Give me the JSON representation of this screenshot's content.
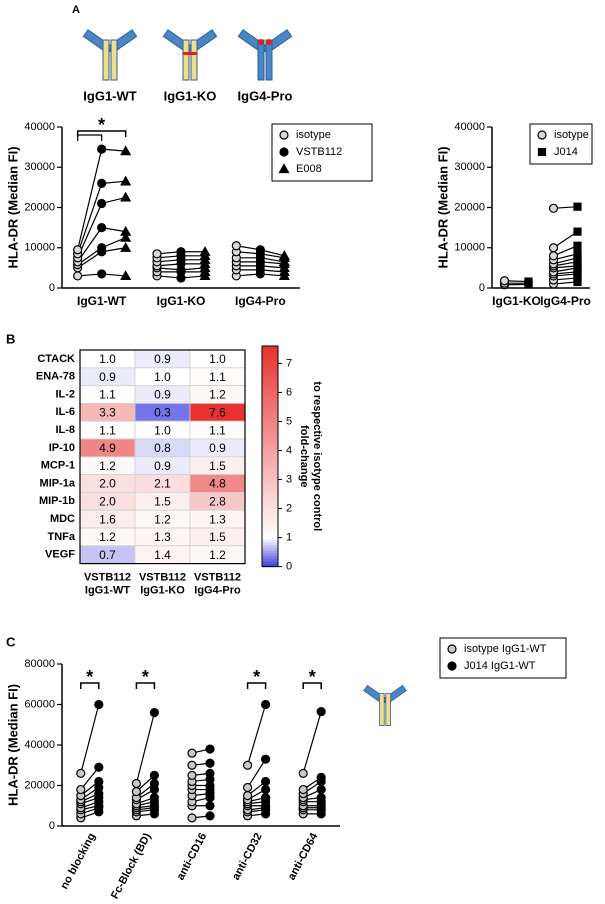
{
  "chart_data": [
    {
      "type": "paired",
      "panel_label": "A",
      "header_labels": [
        "IgG1-WT",
        "IgG1-KO",
        "IgG4-Pro"
      ],
      "ylabel": "HLA-DR (Median FI)",
      "categories": [
        "IgG1-WT",
        "IgG1-KO",
        "IgG4-Pro"
      ],
      "series": [
        {
          "name": "isotype",
          "color": "#d9d9d9",
          "edgecolor": "#000000",
          "marker": "circle",
          "values": [
            [
              3000,
              5000,
              5800,
              6500,
              7500,
              8500,
              9500
            ],
            [
              3000,
              4000,
              5000,
              5500,
              6500,
              7500,
              8500
            ],
            [
              3000,
              4500,
              5500,
              6500,
              7500,
              9000,
              10500
            ]
          ]
        },
        {
          "name": "VSTB112",
          "color": "#000000",
          "edgecolor": "#000000",
          "marker": "circle",
          "values": [
            [
              3500,
              9000,
              10000,
              15000,
              21000,
              26000,
              34500
            ],
            [
              2500,
              4000,
              4500,
              6000,
              7000,
              8000,
              9000
            ],
            [
              3500,
              4500,
              5500,
              6500,
              7500,
              8500,
              9500
            ]
          ]
        },
        {
          "name": "E008",
          "color": "#000000",
          "edgecolor": "#000000",
          "marker": "triangle",
          "values": [
            [
              3000,
              10000,
              12500,
              14000,
              22500,
              26500,
              34000
            ],
            [
              3000,
              4000,
              5000,
              6000,
              7000,
              8000,
              9000
            ],
            [
              3000,
              4000,
              5000,
              6000,
              6500,
              7500,
              8000
            ]
          ]
        }
      ],
      "ylim": [
        0,
        40000
      ],
      "yticks": [
        0,
        10000,
        20000,
        30000,
        40000
      ],
      "legend": "upper right",
      "significant": [
        true,
        false,
        false
      ],
      "significance_label": "*"
    },
    {
      "type": "paired",
      "ylabel": "HLA-DR (Median FI)",
      "categories": [
        "IgG1-KO",
        "IgG4-Pro"
      ],
      "series": [
        {
          "name": "isotype",
          "color": "#d9d9d9",
          "edgecolor": "#000000",
          "marker": "circle",
          "values": [
            [
              800,
              1200,
              1800
            ],
            [
              1000,
              2000,
              3000,
              3500,
              4000,
              5000,
              5500,
              6000,
              7000,
              8000,
              10000,
              19800
            ]
          ]
        },
        {
          "name": "J014",
          "color": "#000000",
          "edgecolor": "#000000",
          "marker": "square",
          "values": [
            [
              900,
              1200,
              1600
            ],
            [
              1500,
              2500,
              3500,
              4000,
              5000,
              5500,
              6500,
              7500,
              8500,
              10500,
              14000,
              20200
            ]
          ]
        }
      ],
      "ylim": [
        0,
        40000
      ],
      "yticks": [
        0,
        10000,
        20000,
        30000,
        40000
      ],
      "legend": "upper right"
    },
    {
      "type": "heatmap",
      "panel_label": "B",
      "rows": [
        "CTACK",
        "ENA-78",
        "IL-2",
        "IL-6",
        "IL-8",
        "IP-10",
        "MCP-1",
        "MIP-1a",
        "MIP-1b",
        "MDC",
        "TNFa",
        "VEGF"
      ],
      "categories": [
        [
          "VSTB112",
          "IgG1-WT"
        ],
        [
          "VSTB112",
          "IgG1-KO"
        ],
        [
          "VSTB112",
          "IgG4-Pro"
        ]
      ],
      "values": [
        [
          1.0,
          0.9,
          1.0
        ],
        [
          0.9,
          1.0,
          1.1
        ],
        [
          1.1,
          0.9,
          1.2
        ],
        [
          3.3,
          0.3,
          7.6
        ],
        [
          1.1,
          1.0,
          1.1
        ],
        [
          4.9,
          0.8,
          0.9
        ],
        [
          1.2,
          0.9,
          1.5
        ],
        [
          2.0,
          2.1,
          4.8
        ],
        [
          2.0,
          1.5,
          2.8
        ],
        [
          1.6,
          1.2,
          1.3
        ],
        [
          1.2,
          1.3,
          1.5
        ],
        [
          0.7,
          1.4,
          1.2
        ]
      ],
      "value_labels": [
        [
          "1.0",
          "0.9",
          "1.0"
        ],
        [
          "0.9",
          "1.0",
          "1.1"
        ],
        [
          "1.1",
          "0.9",
          "1.2"
        ],
        [
          "3.3",
          "0.3",
          "7.6"
        ],
        [
          "1.1",
          "1.0",
          "1.1"
        ],
        [
          "4.9",
          "0.8",
          "0.9"
        ],
        [
          "1.2",
          "0.9",
          "1.5"
        ],
        [
          "2.0",
          "2.1",
          "4.8"
        ],
        [
          "2.0",
          "1.5",
          "2.8"
        ],
        [
          "1.6",
          "1.2",
          "1.3"
        ],
        [
          "1.2",
          "1.3",
          "1.5"
        ],
        [
          "0.7",
          "1.4",
          "1.2"
        ]
      ],
      "zlim": [
        0,
        7.6
      ],
      "zticks": [
        0,
        1,
        2,
        3,
        4,
        5,
        6,
        7
      ],
      "zmid": 1,
      "colors": {
        "low": "#3a3ade",
        "mid": "#ffffff",
        "high": "#e83232"
      },
      "colorbar_label": [
        "fold-change",
        "to respective isotype control"
      ]
    },
    {
      "type": "paired",
      "panel_label": "C",
      "ylabel": "HLA-DR (Median FI)",
      "categories": [
        "no blocking",
        "Fc-Block (BD)",
        "anti-CD16",
        "anti-CD32",
        "anti-CD64"
      ],
      "series": [
        {
          "name": "isotype IgG1-WT",
          "color": "#c8c8c8",
          "edgecolor": "#000000",
          "marker": "circle",
          "values": [
            [
              4000,
              6000,
              8000,
              9000,
              11000,
              12000,
              13000,
              15000,
              18000,
              26000
            ],
            [
              5000,
              7000,
              8000,
              9000,
              10000,
              11000,
              13000,
              14000,
              17000,
              21000
            ],
            [
              4000,
              10000,
              12000,
              15000,
              18000,
              20000,
              22000,
              25000,
              30000,
              36000
            ],
            [
              5000,
              7000,
              8000,
              10000,
              11000,
              12000,
              13000,
              15000,
              19000,
              30000
            ],
            [
              6000,
              8000,
              9000,
              10000,
              12000,
              13000,
              14000,
              16000,
              18000,
              26000
            ]
          ]
        },
        {
          "name": "J014 IgG1-WT",
          "color": "#000000",
          "edgecolor": "#000000",
          "marker": "circle",
          "values": [
            [
              7000,
              9000,
              10000,
              12000,
              14000,
              16000,
              19000,
              22000,
              29000,
              60000
            ],
            [
              6000,
              8000,
              9000,
              10000,
              12000,
              14000,
              18000,
              21000,
              25000,
              56000
            ],
            [
              5000,
              10000,
              14000,
              16000,
              18000,
              20000,
              23000,
              26000,
              31000,
              38000
            ],
            [
              6000,
              8000,
              9000,
              10000,
              12000,
              14000,
              18000,
              22000,
              33000,
              60000
            ],
            [
              6000,
              8000,
              9000,
              10000,
              12000,
              14000,
              18000,
              22000,
              24000,
              56500
            ]
          ]
        }
      ],
      "ylim": [
        0,
        80000
      ],
      "yticks": [
        0,
        20000,
        40000,
        60000,
        80000
      ],
      "legend": "upper right",
      "significant": [
        true,
        true,
        false,
        true,
        true
      ],
      "significance_label": "*"
    }
  ]
}
